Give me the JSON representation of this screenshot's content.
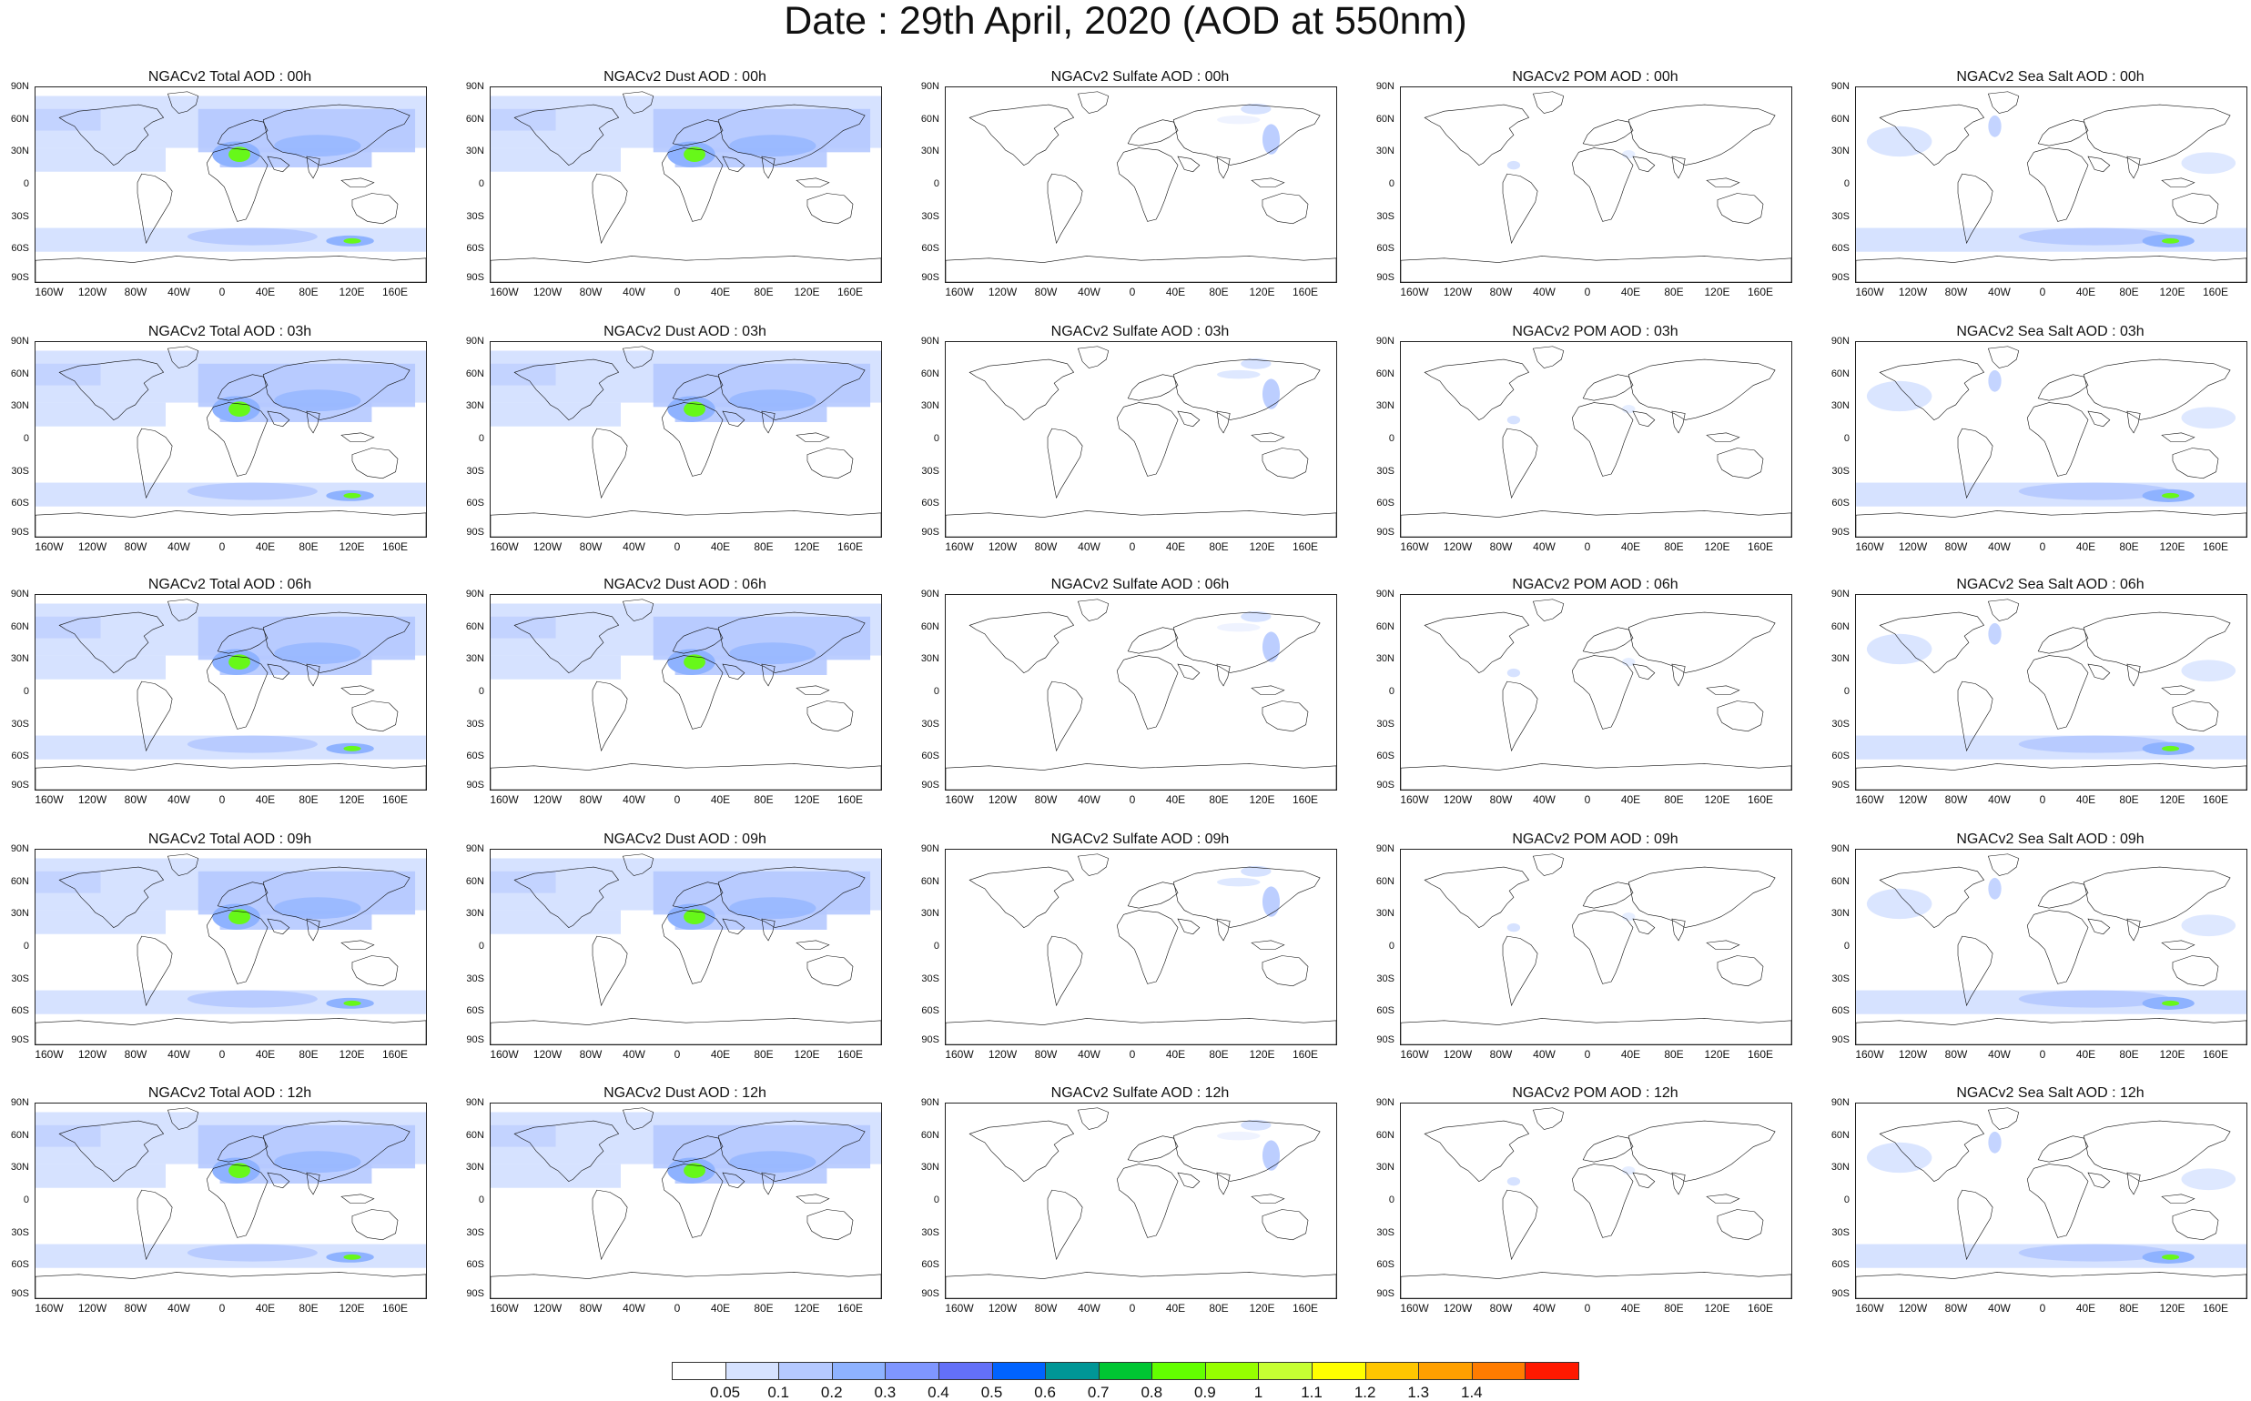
{
  "title": "Date : 29th April, 2020 (AOD at 550nm)",
  "lat_labels": [
    "90N",
    "60N",
    "30N",
    "0",
    "30S",
    "60S",
    "90S"
  ],
  "lon_labels": [
    "160W",
    "120W",
    "80W",
    "40W",
    "0",
    "40E",
    "80E",
    "120E",
    "160E"
  ],
  "panel_titles": [
    [
      "NGACv2 Total AOD : 00h",
      "NGACv2 Dust AOD : 00h",
      "NGACv2 Sulfate AOD : 00h",
      "NGACv2 POM AOD : 00h",
      "NGACv2 Sea Salt AOD : 00h"
    ],
    [
      "NGACv2 Total AOD : 03h",
      "NGACv2 Dust AOD : 03h",
      "NGACv2 Sulfate AOD : 03h",
      "NGACv2 POM AOD : 03h",
      "NGACv2 Sea Salt AOD : 03h"
    ],
    [
      "NGACv2 Total AOD : 06h",
      "NGACv2 Dust AOD : 06h",
      "NGACv2 Sulfate AOD : 06h",
      "NGACv2 POM AOD : 06h",
      "NGACv2 Sea Salt AOD : 06h"
    ],
    [
      "NGACv2 Total AOD : 09h",
      "NGACv2 Dust AOD : 09h",
      "NGACv2 Sulfate AOD : 09h",
      "NGACv2 POM AOD : 09h",
      "NGACv2 Sea Salt  AOD : 09h"
    ],
    [
      "NGACv2 Total AOD  : 12h",
      "NGACv2 Dust AOD : 12h",
      "NGACv2 Sulfate AOD : 12h",
      "NGACv2 POM  AOD : 12h",
      "NGACv2 Sea Salt  AOD : 12h"
    ]
  ],
  "colorbar": {
    "labels": [
      "0.05",
      "0.1",
      "0.2",
      "0.3",
      "0.4",
      "0.5",
      "0.6",
      "0.7",
      "0.8",
      "0.9",
      "1",
      "1.1",
      "1.2",
      "1.3",
      "1.4"
    ],
    "colors": [
      "#ffffff",
      "#d6e2ff",
      "#b5c9ff",
      "#8eb2ff",
      "#7f96ff",
      "#6370f8",
      "#0063ff",
      "#009696",
      "#00c633",
      "#63ff00",
      "#96ff00",
      "#c6ff33",
      "#ffff00",
      "#ffc600",
      "#ffa000",
      "#ff7c00",
      "#ff1900"
    ]
  },
  "map_colors": {
    "land_outline": "#111111",
    "aod_low": "#d6e2ff",
    "aod_mid": "#b5c9ff",
    "aod_high": "#8eb2ff",
    "aod_peak": "#63ff00"
  }
}
